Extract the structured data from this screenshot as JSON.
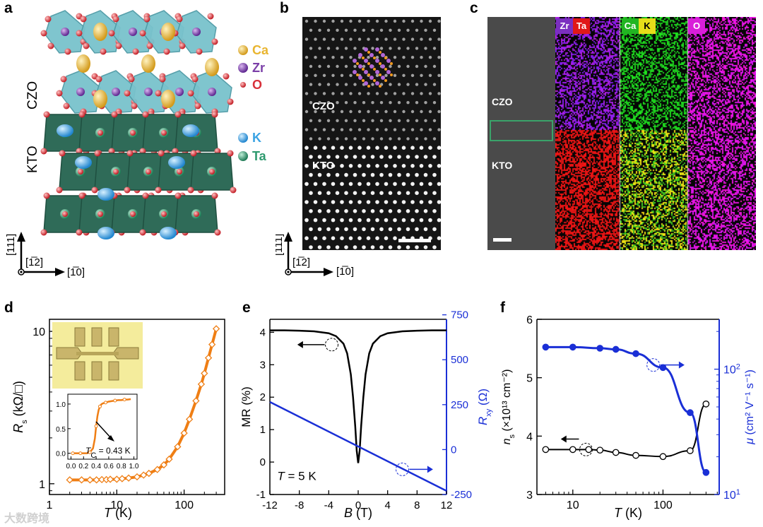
{
  "panels": {
    "a": {
      "letter": "a",
      "layer_top": "CZO",
      "layer_bottom": "KTO",
      "legend": [
        {
          "sym": "Ca",
          "color": "#e9b530"
        },
        {
          "sym": "Zr",
          "color": "#7b3fa8"
        },
        {
          "sym": "O",
          "color": "#d8313a"
        },
        {
          "sym": "K",
          "color": "#3aa3e3"
        },
        {
          "sym": "Ta",
          "color": "#2f9a6f"
        }
      ],
      "axis_vertical": "[111]",
      "axis_diag": "[1̅2]",
      "axis_horizontal": "[1̅0]"
    },
    "b": {
      "letter": "b",
      "label_top": "CZO",
      "label_bottom": "KTO",
      "axis_vertical": "[111]",
      "axis_diag": "[1̅2]",
      "axis_horizontal": "[1̅0]"
    },
    "c": {
      "letter": "c",
      "label_top": "CZO",
      "label_bottom": "KTO",
      "chips": [
        {
          "t": "Zr",
          "bg": "#7b2fc0"
        },
        {
          "t": "Ta",
          "bg": "#e01818"
        },
        {
          "t": "Ca",
          "bg": "#22b522"
        },
        {
          "t": "K",
          "bg": "#e6dd1a",
          "fg": "#000"
        },
        {
          "t": "O",
          "bg": "#d91ed9"
        }
      ]
    },
    "d": {
      "letter": "d"
    },
    "e": {
      "letter": "e"
    },
    "f": {
      "letter": "f"
    }
  },
  "watermark": "大数跨境",
  "chart_data": [
    {
      "id": "d",
      "type": "line",
      "xscale": "log",
      "yscale": "log",
      "xlabel_sym": "T",
      "xlabel_unit": " (K)",
      "ylabel_sym": "R",
      "ylabel_sub": "s",
      "ylabel_unit": " (kΩ/□)",
      "xlim": [
        1,
        400
      ],
      "ylim": [
        0.85,
        12
      ],
      "xticks": [
        {
          "v": 1,
          "t": "1"
        },
        {
          "v": 10,
          "t": "10"
        },
        {
          "v": 100,
          "t": "100"
        }
      ],
      "yticks": [
        {
          "v": 1,
          "t": "1"
        },
        {
          "v": 10,
          "t": "10"
        }
      ],
      "series": [
        {
          "name": "Rs",
          "color": "#ef7e14",
          "x": [
            2,
            3,
            4,
            5,
            6,
            7,
            8,
            10,
            12,
            15,
            20,
            25,
            30,
            40,
            50,
            60,
            80,
            100,
            120,
            150,
            180,
            200,
            230,
            260,
            300
          ],
          "y": [
            1.06,
            1.06,
            1.06,
            1.06,
            1.065,
            1.065,
            1.07,
            1.07,
            1.08,
            1.09,
            1.11,
            1.14,
            1.17,
            1.24,
            1.33,
            1.45,
            1.75,
            2.15,
            2.65,
            3.5,
            4.5,
            5.3,
            6.7,
            8.2,
            10.4
          ]
        }
      ],
      "inset": {
        "xlabel_pre": "T",
        "xlabel_sub": "C",
        "annotation": " = 0.43 K",
        "xlim": [
          -0.05,
          1.05
        ],
        "ylim": [
          -0.12,
          1.2
        ],
        "xticks": [
          {
            "v": 0,
            "t": "0.0"
          },
          {
            "v": 0.2,
            "t": "0.2"
          },
          {
            "v": 0.4,
            "t": "0.4"
          },
          {
            "v": 0.6,
            "t": "0.6"
          },
          {
            "v": 0.8,
            "t": "0.8"
          },
          {
            "v": 1.0,
            "t": "1.0"
          }
        ],
        "yticks": [
          {
            "v": 0,
            "t": "0.0"
          },
          {
            "v": 0.5,
            "t": "0.5"
          },
          {
            "v": 1.0,
            "t": "1.0"
          }
        ],
        "x": [
          0.03,
          0.06,
          0.1,
          0.15,
          0.2,
          0.25,
          0.3,
          0.35,
          0.38,
          0.4,
          0.42,
          0.44,
          0.46,
          0.48,
          0.5,
          0.55,
          0.6,
          0.65,
          0.7,
          0.75,
          0.8,
          0.85,
          0.9,
          0.95
        ],
        "y": [
          0.0,
          0.0,
          0.0,
          0.0,
          0.0,
          0.0,
          0.02,
          0.1,
          0.3,
          0.55,
          0.75,
          0.88,
          0.95,
          0.99,
          1.01,
          1.03,
          1.05,
          1.06,
          1.07,
          1.08,
          1.08,
          1.09,
          1.09,
          1.1
        ]
      }
    },
    {
      "id": "e",
      "type": "line",
      "xlabel_sym": "B",
      "xlabel_unit": " (T)",
      "ylabel_left": "MR (%)",
      "ylabel_right_sym": "R",
      "ylabel_right_sub": "xy",
      "ylabel_right_unit": " (Ω)",
      "annotation_sym": "T",
      "annotation_text": " = 5 K",
      "xlim": [
        -12,
        12
      ],
      "ylim_left": [
        -1,
        4.4
      ],
      "ylim_right": [
        -250,
        725
      ],
      "xticks": [
        -12,
        -8,
        -4,
        0,
        4,
        8,
        12
      ],
      "yticks_left": [
        -1,
        0,
        1,
        2,
        3,
        4
      ],
      "yticks_right": [
        -250,
        0,
        250,
        500,
        750
      ],
      "series": [
        {
          "name": "MR",
          "axis": "left",
          "color": "#000000",
          "x": [
            -12,
            -10,
            -8,
            -6,
            -4,
            -3,
            -2,
            -1.5,
            -1,
            -0.7,
            -0.4,
            -0.2,
            0,
            0.2,
            0.4,
            0.7,
            1,
            1.5,
            2,
            3,
            4,
            6,
            8,
            10,
            12
          ],
          "y": [
            4.06,
            4.06,
            4.05,
            4.03,
            3.97,
            3.88,
            3.65,
            3.35,
            2.7,
            2.0,
            1.1,
            0.35,
            -0.03,
            0.35,
            1.1,
            2.0,
            2.7,
            3.35,
            3.65,
            3.88,
            3.97,
            4.03,
            4.05,
            4.06,
            4.06
          ]
        },
        {
          "name": "Rxy",
          "axis": "right",
          "color": "#1a2fd6",
          "x": [
            -12,
            12
          ],
          "y": [
            265,
            -230
          ]
        }
      ]
    },
    {
      "id": "f",
      "type": "line",
      "xscale": "log",
      "xlabel_sym": "T",
      "xlabel_unit": " (K)",
      "ylabel_left_sym": "n",
      "ylabel_left_sub": "s",
      "ylabel_left_unit": " (×10¹³ cm⁻²)",
      "ylabel_right_sym": "μ",
      "ylabel_right_unit": " (cm² V⁻¹ s⁻¹)",
      "xlim": [
        4,
        420
      ],
      "ylim_left": [
        3,
        6
      ],
      "ylim_right_log": [
        10,
        250
      ],
      "xticks": [
        {
          "v": 10,
          "t": "10"
        },
        {
          "v": 100,
          "t": "100"
        }
      ],
      "yticks_left": [
        3,
        4,
        5,
        6
      ],
      "yticks_right": [
        {
          "v": 10,
          "t": "10",
          "sup": "1"
        },
        {
          "v": 100,
          "t": "10",
          "sup": "2"
        }
      ],
      "series": [
        {
          "name": "ns",
          "axis": "left",
          "color": "#000000",
          "marker": "open",
          "x": [
            5,
            10,
            15,
            20,
            30,
            50,
            100,
            200,
            300
          ],
          "y": [
            3.77,
            3.77,
            3.77,
            3.76,
            3.72,
            3.67,
            3.65,
            3.75,
            4.55
          ]
        },
        {
          "name": "mu",
          "axis": "right",
          "color": "#1a2fd6",
          "marker": "filled",
          "x": [
            5,
            10,
            20,
            30,
            50,
            100,
            200,
            300
          ],
          "y": [
            150,
            150,
            147,
            144,
            133,
            103,
            45,
            15
          ]
        }
      ]
    }
  ]
}
